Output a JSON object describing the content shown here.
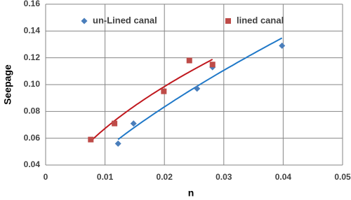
{
  "chart_data": {
    "type": "scatter",
    "x_label": "n",
    "y_label": "Seepage",
    "xlim": [
      0,
      0.05
    ],
    "xticks": [
      0,
      0.01,
      0.02,
      0.03,
      0.04,
      0.05
    ],
    "ylim": [
      0.04,
      0.16
    ],
    "yticks": [
      0.04,
      0.06,
      0.08,
      {
        "value": 0.1,
        "label": "0.10"
      },
      0.12,
      0.14,
      0.16
    ],
    "grid": true,
    "legend": "top",
    "trendline": "power",
    "series": [
      {
        "name": "un-Lined canal",
        "color": "#4a7ebb",
        "line_color": "#1f78c8",
        "marker": "diamond",
        "x": [
          0.0122,
          0.0148,
          0.0255,
          0.0281,
          0.0398
        ],
        "values": [
          0.056,
          0.071,
          0.097,
          0.113,
          0.129
        ]
      },
      {
        "name": "lined canal",
        "color": "#be4b48",
        "line_color": "#c0181e",
        "marker": "square",
        "x": [
          0.0076,
          0.0116,
          0.0199,
          0.0242,
          0.0281
        ],
        "values": [
          0.059,
          0.071,
          0.095,
          0.118,
          0.115
        ]
      }
    ]
  }
}
